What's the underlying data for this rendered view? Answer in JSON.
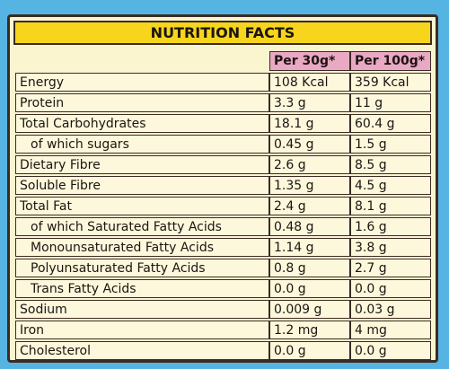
{
  "title": "NUTRITION FACTS",
  "table": {
    "header": [
      "Per 30g*",
      "Per 100g*"
    ],
    "rows": [
      [
        "Energy",
        "108 Kcal",
        "359 Kcal"
      ],
      [
        "Protein",
        "3.3 g",
        "11 g"
      ],
      [
        "Total Carbohydrates",
        "18.1 g",
        "60.4 g"
      ],
      [
        "of which sugars",
        "0.45 g",
        "1.5 g"
      ],
      [
        "Dietary Fibre",
        "2.6 g",
        "8.5 g"
      ],
      [
        "Soluble Fibre",
        "1.35 g",
        "4.5 g"
      ],
      [
        "Total Fat",
        "2.4 g",
        "8.1 g"
      ],
      [
        "of which Saturated Fatty Acids",
        "0.48 g",
        "1.6 g"
      ],
      [
        "Monounsaturated Fatty Acids",
        "1.14 g",
        "3.8 g"
      ],
      [
        "Polyunsaturated Fatty Acids",
        "0.8 g",
        "2.7 g"
      ],
      [
        "Trans Fatty Acids",
        "0.0 g",
        "0.0 g"
      ],
      [
        "Sodium",
        "0.009 g",
        "0.03 g"
      ],
      [
        "Iron",
        "1.2 mg",
        "4 mg"
      ],
      [
        "Cholesterol",
        "0.0 g",
        "0.0 g"
      ]
    ]
  }
}
